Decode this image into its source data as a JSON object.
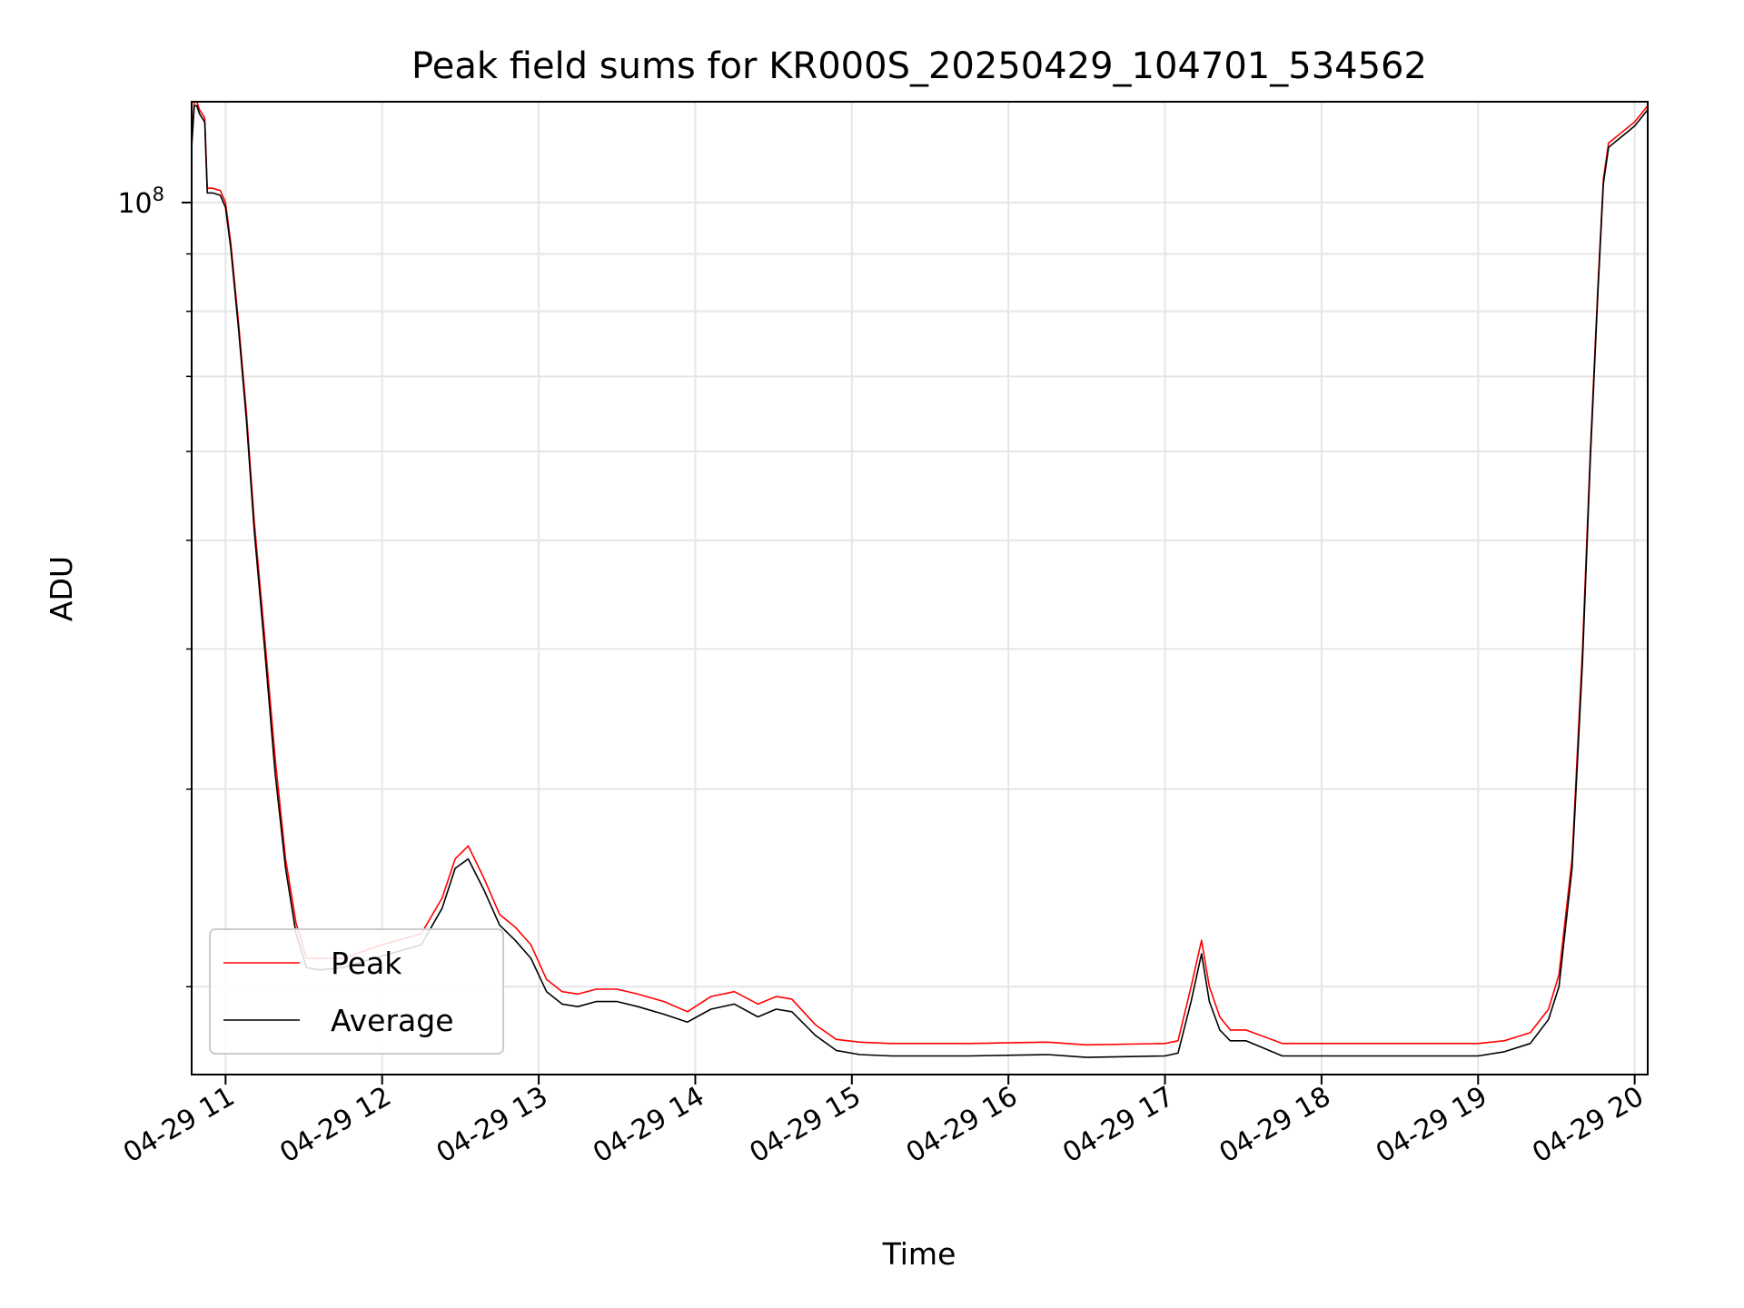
{
  "chart_data": {
    "type": "line",
    "title": "Peak field sums for KR000S_20250429_104701_534562",
    "xlabel": "Time",
    "ylabel": "ADU",
    "y_scale": "log",
    "grid": true,
    "legend_placement": "lower-left",
    "x_tick_labels": [
      "04-29 11",
      "04-29 12",
      "04-29 13",
      "04-29 14",
      "04-29 15",
      "04-29 16",
      "04-29 17",
      "04-29 18",
      "04-29 19",
      "04-29 20"
    ],
    "y_tick_labels": [
      {
        "base": "10",
        "exp": "8"
      }
    ],
    "xlim": [
      "2025-04-29 10:47",
      "2025-04-29 20:05"
    ],
    "ylim": [
      16700000,
      123000000
    ],
    "series": [
      {
        "name": "Peak",
        "color": "#ff0000",
        "x": [
          "10:47",
          "10:48",
          "10:49",
          "10:50",
          "10:52",
          "10:53",
          "10:54",
          "10:55",
          "10:58",
          "11:00",
          "11:02",
          "11:05",
          "11:08",
          "11:11",
          "11:15",
          "11:19",
          "11:23",
          "11:27",
          "11:31",
          "11:36",
          "11:45",
          "12:00",
          "12:15",
          "12:23",
          "12:28",
          "12:33",
          "12:39",
          "12:45",
          "12:51",
          "12:57",
          "13:03",
          "13:09",
          "13:15",
          "13:22",
          "13:30",
          "13:38",
          "13:48",
          "13:57",
          "14:06",
          "14:15",
          "14:24",
          "14:31",
          "14:37",
          "14:46",
          "14:54",
          "15:03",
          "15:15",
          "15:45",
          "16:15",
          "16:30",
          "17:00",
          "17:05",
          "17:10",
          "17:14",
          "17:17",
          "17:21",
          "17:25",
          "17:31",
          "17:45",
          "17:52",
          "18:00",
          "18:30",
          "19:00",
          "19:10",
          "19:20",
          "19:27",
          "19:31",
          "19:36",
          "19:40",
          "19:43",
          "19:46",
          "19:48",
          "19:50",
          "20:00",
          "20:05"
        ],
        "y": [
          113000000,
          123000000,
          123000000,
          121000000,
          119000000,
          103000000,
          103000000,
          103000000,
          102500000,
          100000000,
          92000000,
          78000000,
          65000000,
          52000000,
          41000000,
          32000000,
          26000000,
          22800000,
          21200000,
          21200000,
          21200000,
          21800000,
          22300000,
          24000000,
          26000000,
          26700000,
          25000000,
          23200000,
          22600000,
          21800000,
          20300000,
          19800000,
          19700000,
          19900000,
          19900000,
          19700000,
          19400000,
          19000000,
          19600000,
          19800000,
          19300000,
          19600000,
          19500000,
          18500000,
          17950000,
          17850000,
          17800000,
          17800000,
          17850000,
          17750000,
          17800000,
          17900000,
          20000000,
          22000000,
          20000000,
          18800000,
          18300000,
          18300000,
          17800000,
          17800000,
          17800000,
          17800000,
          17800000,
          17900000,
          18200000,
          19100000,
          20500000,
          26000000,
          40000000,
          60000000,
          85000000,
          105000000,
          113000000,
          118000000,
          122000000
        ]
      },
      {
        "name": "Average",
        "color": "#000000",
        "x": [
          "10:47",
          "10:48",
          "10:49",
          "10:50",
          "10:52",
          "10:53",
          "10:54",
          "10:55",
          "10:58",
          "11:00",
          "11:02",
          "11:05",
          "11:08",
          "11:11",
          "11:15",
          "11:19",
          "11:23",
          "11:27",
          "11:31",
          "11:36",
          "11:45",
          "12:00",
          "12:15",
          "12:23",
          "12:28",
          "12:33",
          "12:39",
          "12:45",
          "12:51",
          "12:57",
          "13:03",
          "13:09",
          "13:15",
          "13:22",
          "13:30",
          "13:38",
          "13:48",
          "13:57",
          "14:06",
          "14:15",
          "14:24",
          "14:31",
          "14:37",
          "14:46",
          "14:54",
          "15:03",
          "15:15",
          "15:45",
          "16:15",
          "16:30",
          "17:00",
          "17:05",
          "17:10",
          "17:14",
          "17:17",
          "17:21",
          "17:25",
          "17:31",
          "17:45",
          "17:52",
          "18:00",
          "18:30",
          "19:00",
          "19:10",
          "19:20",
          "19:27",
          "19:31",
          "19:36",
          "19:40",
          "19:43",
          "19:46",
          "19:48",
          "19:50",
          "20:00",
          "20:05"
        ],
        "y": [
          112000000,
          122000000,
          122000000,
          120000000,
          118000000,
          102000000,
          102000000,
          102000000,
          101500000,
          99000000,
          91000000,
          77000000,
          64000000,
          51000000,
          40000000,
          31000000,
          25500000,
          22300000,
          20800000,
          20700000,
          20800000,
          21300000,
          21800000,
          23500000,
          25500000,
          26000000,
          24400000,
          22700000,
          22000000,
          21200000,
          19800000,
          19300000,
          19200000,
          19400000,
          19400000,
          19200000,
          18900000,
          18600000,
          19100000,
          19300000,
          18800000,
          19100000,
          19000000,
          18100000,
          17550000,
          17400000,
          17350000,
          17350000,
          17400000,
          17300000,
          17350000,
          17450000,
          19400000,
          21400000,
          19400000,
          18300000,
          17900000,
          17900000,
          17350000,
          17350000,
          17350000,
          17350000,
          17350000,
          17500000,
          17800000,
          18700000,
          20000000,
          25500000,
          39000000,
          59000000,
          84000000,
          104000000,
          112000000,
          117000000,
          121000000
        ]
      }
    ]
  }
}
